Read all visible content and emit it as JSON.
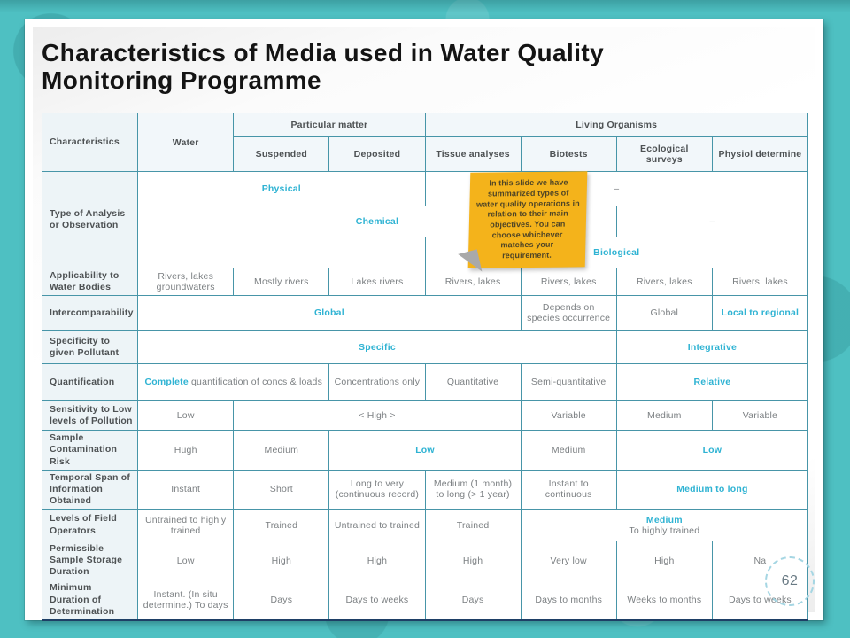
{
  "page": {
    "number": "62"
  },
  "title": {
    "line1": "Characteristics of Media used in Water Quality",
    "line2": "Monitoring Programme"
  },
  "colors": {
    "background_teal": "#4ec0c2",
    "table_border": "#4795a8",
    "accent_teal": "#2fb3d3",
    "bottom_rule_navy": "#1e3f66",
    "sticky_note_yellow": "#f4b31b"
  },
  "sticky_note": {
    "text": "In this slide we have summarized types of water quality operations in relation to their main objectives. You can choose whichever matches your requirement."
  },
  "table": {
    "header": {
      "characteristics": "Characteristics",
      "water": "Water",
      "particular_matter": "Particular matter",
      "living_organisms": "Living Organisms",
      "suspended": "Suspended",
      "deposited": "Deposited",
      "tissue": "Tissue analyses",
      "biotests": "Biotests",
      "ecological": "Ecological surveys",
      "physiol": "Physiol determine"
    },
    "rows": {
      "type_of_analysis": {
        "label": "Type of Analysis or Observation",
        "physical": "Physical",
        "physical_dash": "–",
        "chemical": "Chemical",
        "chemical_dash": "–",
        "biological": "Biological"
      },
      "applicability": {
        "label": "Applicability to Water Bodies",
        "c1": "Rivers, lakes groundwaters",
        "c2": "Mostly rivers",
        "c3": "Lakes rivers",
        "c4": "Rivers, lakes",
        "c5": "Rivers, lakes",
        "c6": "Rivers, lakes",
        "c7": "Rivers, lakes"
      },
      "intercomparability": {
        "label": "Intercomparability",
        "c1": "Global",
        "c2": "Depends on species occurrence",
        "c3": "Global",
        "c4": "Local to regional"
      },
      "specificity": {
        "label": "Specificity to given Pollutant",
        "c1": "Specific",
        "c2": "Integrative"
      },
      "quantification": {
        "label": "Quantification",
        "c1_accent": "Complete",
        "c1_rest": " quantification of concs & loads",
        "c2": "Concentrations only",
        "c3": "Quantitative",
        "c4": "Semi-quantitative",
        "c5": "Relative"
      },
      "sensitivity": {
        "label": "Sensitivity to Low levels of Pollution",
        "c1": "Low",
        "c2": "< High >",
        "c3": "Variable",
        "c4": "Medium",
        "c5": "Variable"
      },
      "contamination": {
        "label": "Sample Contamination Risk",
        "c1": "Hugh",
        "c2": "Medium",
        "c3": "Low",
        "c4": "Medium",
        "c5": "Low"
      },
      "temporal": {
        "label": "Temporal Span of Information Obtained",
        "c1": "Instant",
        "c2": "Short",
        "c3": "Long to very (continuous record)",
        "c4": "Medium (1 month) to long (> 1 year)",
        "c5": "Instant to continuous",
        "c6": "Medium to long"
      },
      "operators": {
        "label": "Levels of Field Operators",
        "c1": "Untrained to highly trained",
        "c2": "Trained",
        "c3": "Untrained to trained",
        "c4": "Trained",
        "c5_accent": "Medium",
        "c5_rest": "To highly trained"
      },
      "storage": {
        "label": "Permissible Sample Storage Duration",
        "c1": "Low",
        "c2": "High",
        "c3": "High",
        "c4": "High",
        "c5": "Very low",
        "c6": "High",
        "c7": "Na"
      },
      "min_duration": {
        "label": "Minimum Duration of Determination",
        "c1": "Instant. (In situ determine.) To days",
        "c2": "Days",
        "c3": "Days to weeks",
        "c4": "Days",
        "c5": "Days to months",
        "c6": "Weeks to months",
        "c7": "Days to weeks"
      }
    }
  }
}
